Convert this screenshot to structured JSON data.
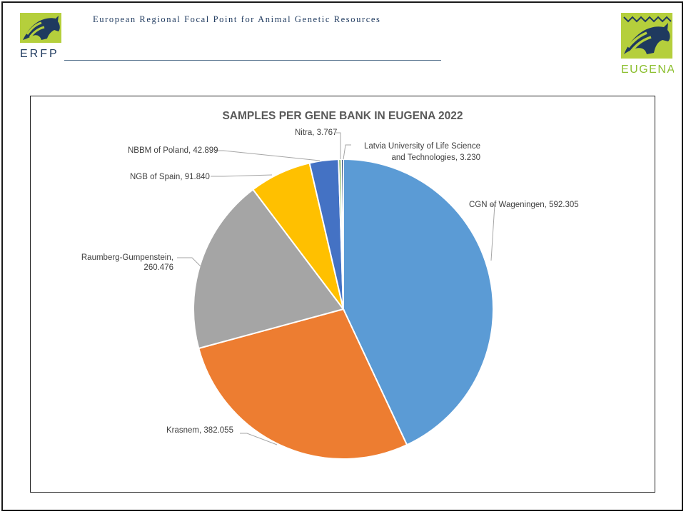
{
  "header": {
    "org_title": "European Regional Focal Point for Animal Genetic Resources",
    "left_logo_text": "ERFP",
    "right_logo_text": "EUGENA"
  },
  "colors": {
    "logo_green": "#b5cf3c",
    "logo_navy": "#1f3a5f",
    "logo_text_green": "#8cbf2f"
  },
  "chart_data": {
    "type": "pie",
    "title": "SAMPLES PER GENE BANK IN EUGENA 2022",
    "slices": [
      {
        "name": "CGN of Wageningen",
        "value": 592305,
        "label": "CGN of Wageningen, 592.305",
        "color": "#5b9bd5"
      },
      {
        "name": "Krasnem",
        "value": 382055,
        "label": "Krasnem, 382.055",
        "color": "#ed7d31"
      },
      {
        "name": "Raumberg-Gumpenstein",
        "value": 260476,
        "label_lines": [
          "Raumberg-Gumpenstein,",
          "260.476"
        ],
        "color": "#a5a5a5"
      },
      {
        "name": "NGB of Spain",
        "value": 91840,
        "label": "NGB of Spain, 91.840",
        "color": "#ffc000"
      },
      {
        "name": "NBBM of Poland",
        "value": 42899,
        "label": "NBBM of Poland, 42.899",
        "color": "#4472c4"
      },
      {
        "name": "Nitra",
        "value": 3767,
        "label": "Nitra, 3.767",
        "color": "#70ad47"
      },
      {
        "name": "Latvia University of Life Science and Technologies",
        "value": 3230,
        "label_lines": [
          "Latvia University of Life Science",
          "and Technologies, 3.230"
        ],
        "color": "#264478"
      }
    ],
    "legend": "none",
    "data_labels": "outside with leader lines"
  }
}
